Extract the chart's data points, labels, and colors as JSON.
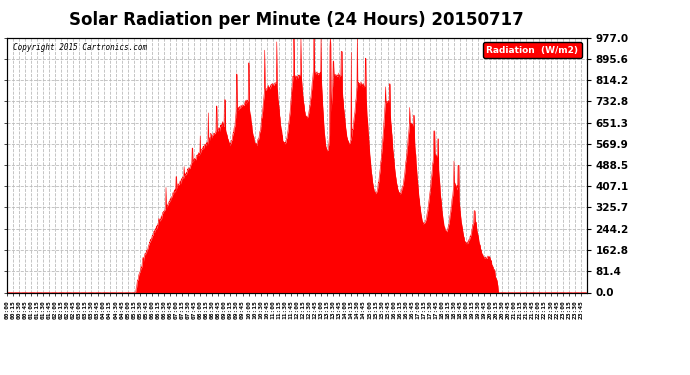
{
  "title": "Solar Radiation per Minute (24 Hours) 20150717",
  "copyright_text": "Copyright 2015 Cartronics.com",
  "y_ticks": [
    0.0,
    81.4,
    162.8,
    244.2,
    325.7,
    407.1,
    488.5,
    569.9,
    651.3,
    732.8,
    814.2,
    895.6,
    977.0
  ],
  "ylim": [
    0.0,
    977.0
  ],
  "fill_color": "#FF0000",
  "line_color": "#FF0000",
  "background_color": "#FFFFFF",
  "grid_color": "#BBBBBB",
  "legend_box_color": "#FF0000",
  "legend_text": "Radiation  (W/m2)",
  "title_fontsize": 12,
  "total_minutes": 1440,
  "sunrise_minute": 320,
  "sunset_minute": 1220,
  "peak_value": 977.0,
  "base_peak": 840.0
}
